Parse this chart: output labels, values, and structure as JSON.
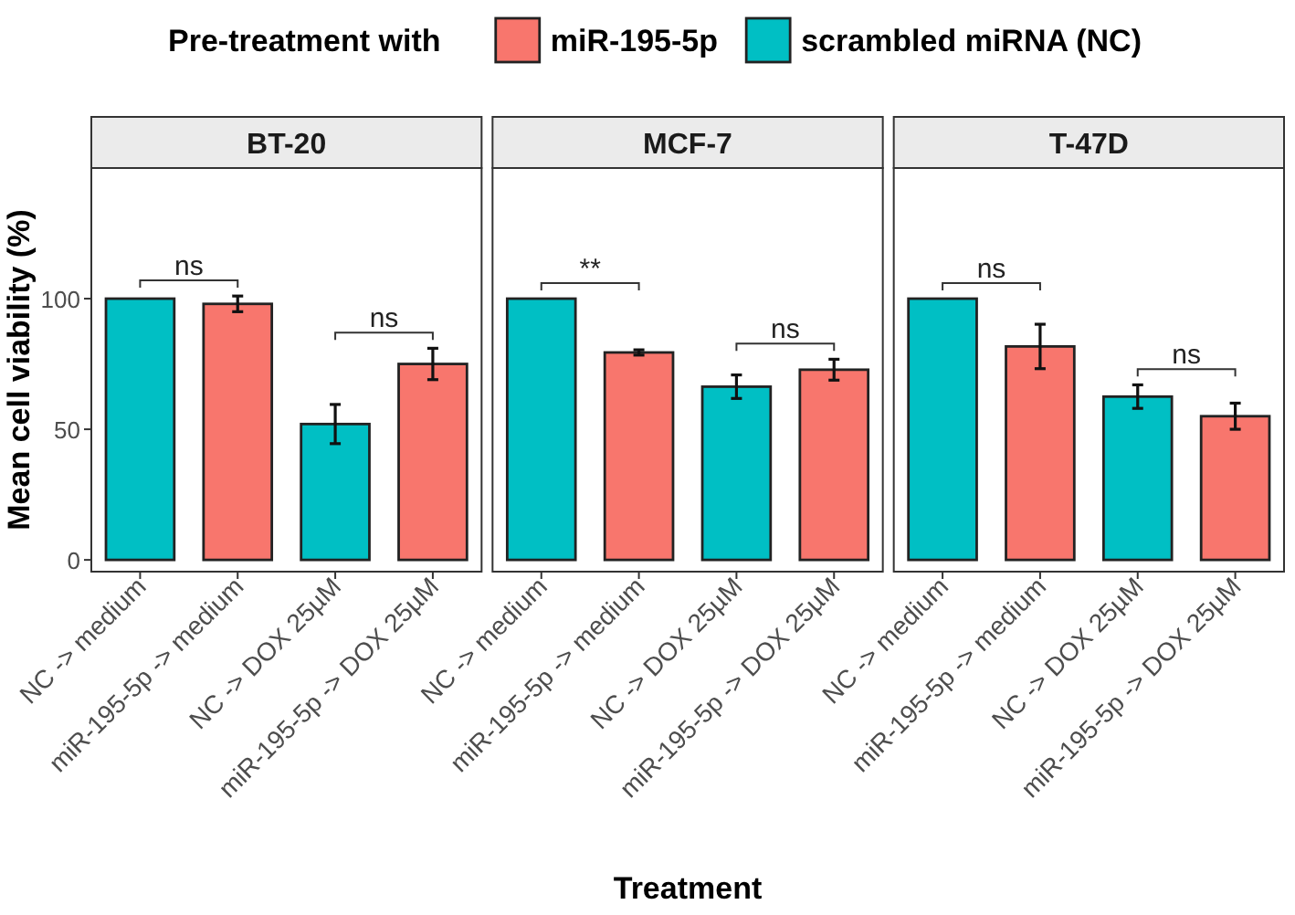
{
  "chart_data": [
    {
      "type": "bar",
      "title": "BT-20",
      "ylabel": "Mean cell viability (%)",
      "legend_title": "Pre-treatment with",
      "legend": "top",
      "categories": [
        "NC -> medium",
        "miR-195-5p -> medium",
        "NC -> DOX 25µM",
        "miR-195-5p -> DOX 25µM"
      ],
      "series": [
        {
          "name": "miR-195-5p",
          "color": "#f8766d",
          "values": [
            null,
            98,
            null,
            75
          ],
          "errors": [
            null,
            3,
            null,
            6
          ]
        },
        {
          "name": "scrambled miRNA (NC)",
          "color": "#00bfc4",
          "values": [
            100,
            null,
            52,
            null
          ],
          "errors": [
            null,
            null,
            7.5,
            null
          ]
        }
      ],
      "ylim": [
        -4.5,
        150
      ],
      "yticks": [
        0,
        50,
        100
      ],
      "annotations": [
        "ns",
        "ns"
      ]
    },
    {
      "type": "bar",
      "title": "MCF-7",
      "xlabel": "Treatment",
      "tick_labels": "x",
      "categories": [
        "NC -> medium",
        "miR-195-5p -> medium",
        "NC -> DOX 25µM",
        "miR-195-5p -> DOX 25µM"
      ],
      "series": [
        {
          "color": "#f8766d",
          "values": [
            null,
            79.4,
            null,
            72.8
          ],
          "errors": [
            null,
            1,
            null,
            4
          ]
        },
        {
          "color": "#00bfc4",
          "values": [
            100,
            null,
            66.3,
            null
          ],
          "errors": [
            null,
            null,
            4.5,
            null
          ]
        }
      ],
      "ylim": [
        -4.5,
        150
      ],
      "annotations": [
        "**",
        "ns"
      ]
    },
    {
      "type": "bar",
      "title": "T-47D",
      "tick_labels": "x",
      "categories": [
        "NC -> medium",
        "miR-195-5p -> medium",
        "NC -> DOX 25µM",
        "miR-195-5p -> DOX 25µM"
      ],
      "series": [
        {
          "color": "#f8766d",
          "values": [
            null,
            81.7,
            null,
            55
          ],
          "errors": [
            null,
            8.5,
            null,
            5
          ]
        },
        {
          "color": "#00bfc4",
          "values": [
            100,
            null,
            62.5,
            null
          ],
          "errors": [
            null,
            null,
            4.5,
            null
          ]
        }
      ],
      "ylim": [
        -4.5,
        150
      ],
      "annotations": [
        "ns",
        "ns"
      ]
    }
  ]
}
